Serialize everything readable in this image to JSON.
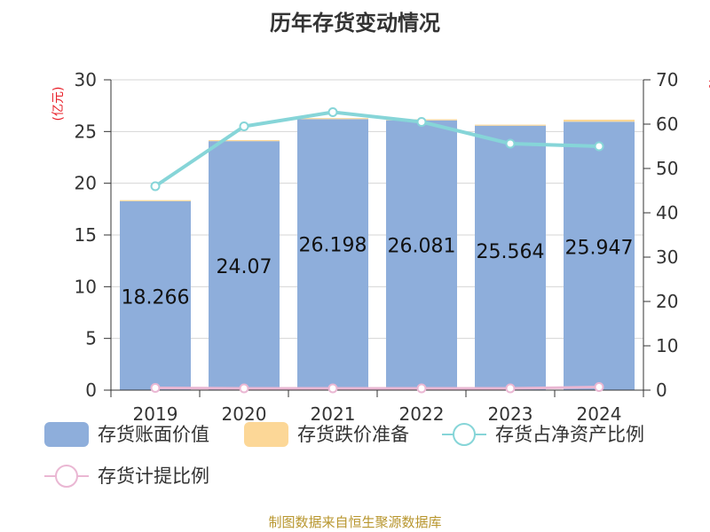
{
  "chart_data": {
    "type": "bar",
    "title": "历年存货变动情况",
    "left_axis_unit": "(亿元)",
    "right_axis_unit": "%",
    "categories": [
      "2019",
      "2020",
      "2021",
      "2022",
      "2023",
      "2024"
    ],
    "left_ylim": [
      0,
      30
    ],
    "left_ticks": [
      0,
      5,
      10,
      15,
      20,
      25,
      30
    ],
    "right_ylim": [
      0,
      70
    ],
    "right_ticks": [
      0,
      10,
      20,
      30,
      40,
      50,
      60,
      70
    ],
    "grid": true,
    "legend_position": "bottom",
    "series": [
      {
        "name": "存货账面价值",
        "kind": "bar",
        "axis": "left",
        "color": "#8eaedb",
        "values": [
          18.266,
          24.07,
          26.198,
          26.081,
          25.564,
          25.947
        ]
      },
      {
        "name": "存货跌价准备",
        "kind": "bar",
        "axis": "left",
        "color": "#fcd797",
        "values": [
          0.1,
          0.1,
          0.1,
          0.1,
          0.1,
          0.2
        ]
      },
      {
        "name": "存货占净资产比例",
        "kind": "line",
        "axis": "right",
        "color": "#86d5d8",
        "values": [
          46.0,
          59.5,
          62.7,
          60.5,
          55.6,
          55.0
        ]
      },
      {
        "name": "存货计提比例",
        "kind": "line",
        "axis": "right",
        "color": "#eab7d3",
        "values": [
          0.5,
          0.4,
          0.4,
          0.4,
          0.4,
          0.7
        ]
      }
    ],
    "data_labels": [
      "18.266",
      "24.07",
      "26.198",
      "26.081",
      "25.564",
      "25.947"
    ]
  },
  "footer": {
    "source": "制图数据来自恒生聚源数据库"
  }
}
